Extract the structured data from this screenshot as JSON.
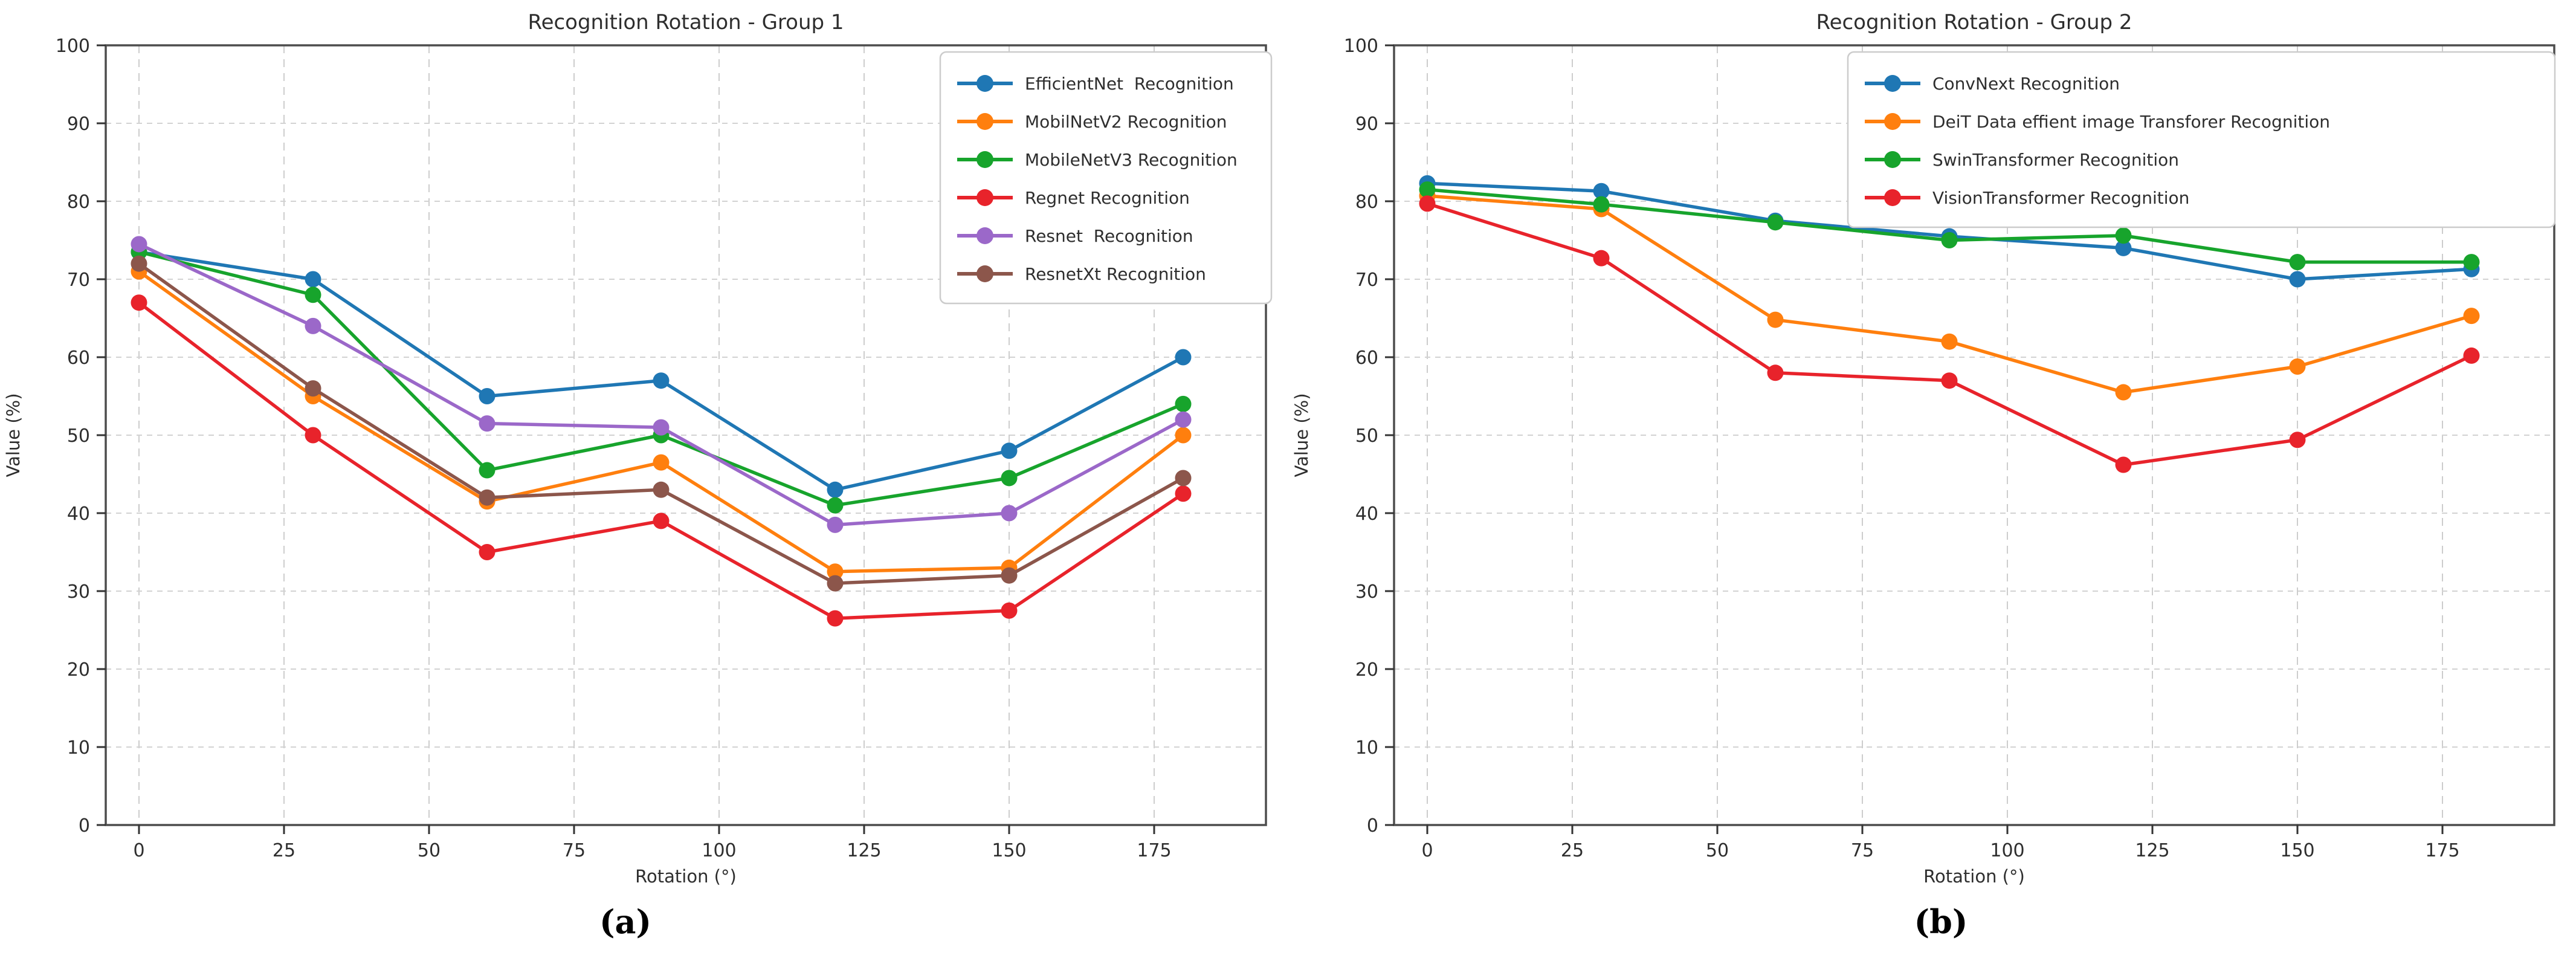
{
  "captions": {
    "a": "(a)",
    "b": "(b)"
  },
  "chart_data": [
    {
      "type": "line",
      "title": "Recognition Rotation - Group 1",
      "xlabel": "Rotation (°)",
      "ylabel": "Value (%)",
      "x": [
        0,
        30,
        60,
        90,
        120,
        150,
        180
      ],
      "x_ticks": [
        0,
        25,
        50,
        75,
        100,
        125,
        150,
        175
      ],
      "y_ticks": [
        0,
        10,
        20,
        30,
        40,
        50,
        60,
        70,
        80,
        90,
        100
      ],
      "ylim": [
        0,
        100
      ],
      "grid": true,
      "legend_position": "upper right",
      "marker": "circle",
      "series": [
        {
          "name": "EfficientNet  Recognition",
          "color": "#1f77b4",
          "values": [
            73.5,
            70,
            55,
            57,
            43,
            48,
            60
          ]
        },
        {
          "name": "MobilNetV2 Recognition",
          "color": "#ff7f0e",
          "values": [
            71,
            55,
            41.5,
            46.5,
            32.5,
            33,
            50
          ]
        },
        {
          "name": "MobileNetV3 Recognition",
          "color": "#17a42c",
          "values": [
            73.5,
            68,
            45.5,
            50,
            41,
            44.5,
            54
          ]
        },
        {
          "name": "Regnet Recognition",
          "color": "#e8232b",
          "values": [
            67,
            50,
            35,
            39,
            26.5,
            27.5,
            42.5
          ]
        },
        {
          "name": "Resnet  Recognition",
          "color": "#9b68c9",
          "values": [
            74.5,
            64,
            51.5,
            51,
            38.5,
            40,
            52
          ]
        },
        {
          "name": "ResnetXt Recognition",
          "color": "#8c564b",
          "values": [
            72,
            56,
            42,
            43,
            31,
            32,
            44.5
          ]
        }
      ]
    },
    {
      "type": "line",
      "title": "Recognition Rotation - Group 2",
      "xlabel": "Rotation (°)",
      "ylabel": "Value (%)",
      "x": [
        0,
        30,
        60,
        90,
        120,
        150,
        180
      ],
      "x_ticks": [
        0,
        25,
        50,
        75,
        100,
        125,
        150,
        175
      ],
      "y_ticks": [
        0,
        10,
        20,
        30,
        40,
        50,
        60,
        70,
        80,
        90,
        100
      ],
      "ylim": [
        0,
        100
      ],
      "grid": true,
      "legend_position": "upper right",
      "marker": "circle",
      "series": [
        {
          "name": "ConvNext Recognition",
          "color": "#1f77b4",
          "values": [
            82.3,
            81.3,
            77.5,
            75.5,
            74,
            70,
            71.3
          ]
        },
        {
          "name": "DeiT Data effient image Transforer Recognition",
          "color": "#ff7f0e",
          "values": [
            80.7,
            79,
            64.8,
            62,
            55.5,
            58.8,
            65.3
          ]
        },
        {
          "name": "SwinTransformer Recognition",
          "color": "#17a42c",
          "values": [
            81.5,
            79.6,
            77.3,
            75,
            75.6,
            72.2,
            72.2
          ]
        },
        {
          "name": "VisionTransformer Recognition",
          "color": "#e8232b",
          "values": [
            79.7,
            72.7,
            58,
            57,
            46.2,
            49.4,
            60.2
          ]
        }
      ]
    }
  ]
}
